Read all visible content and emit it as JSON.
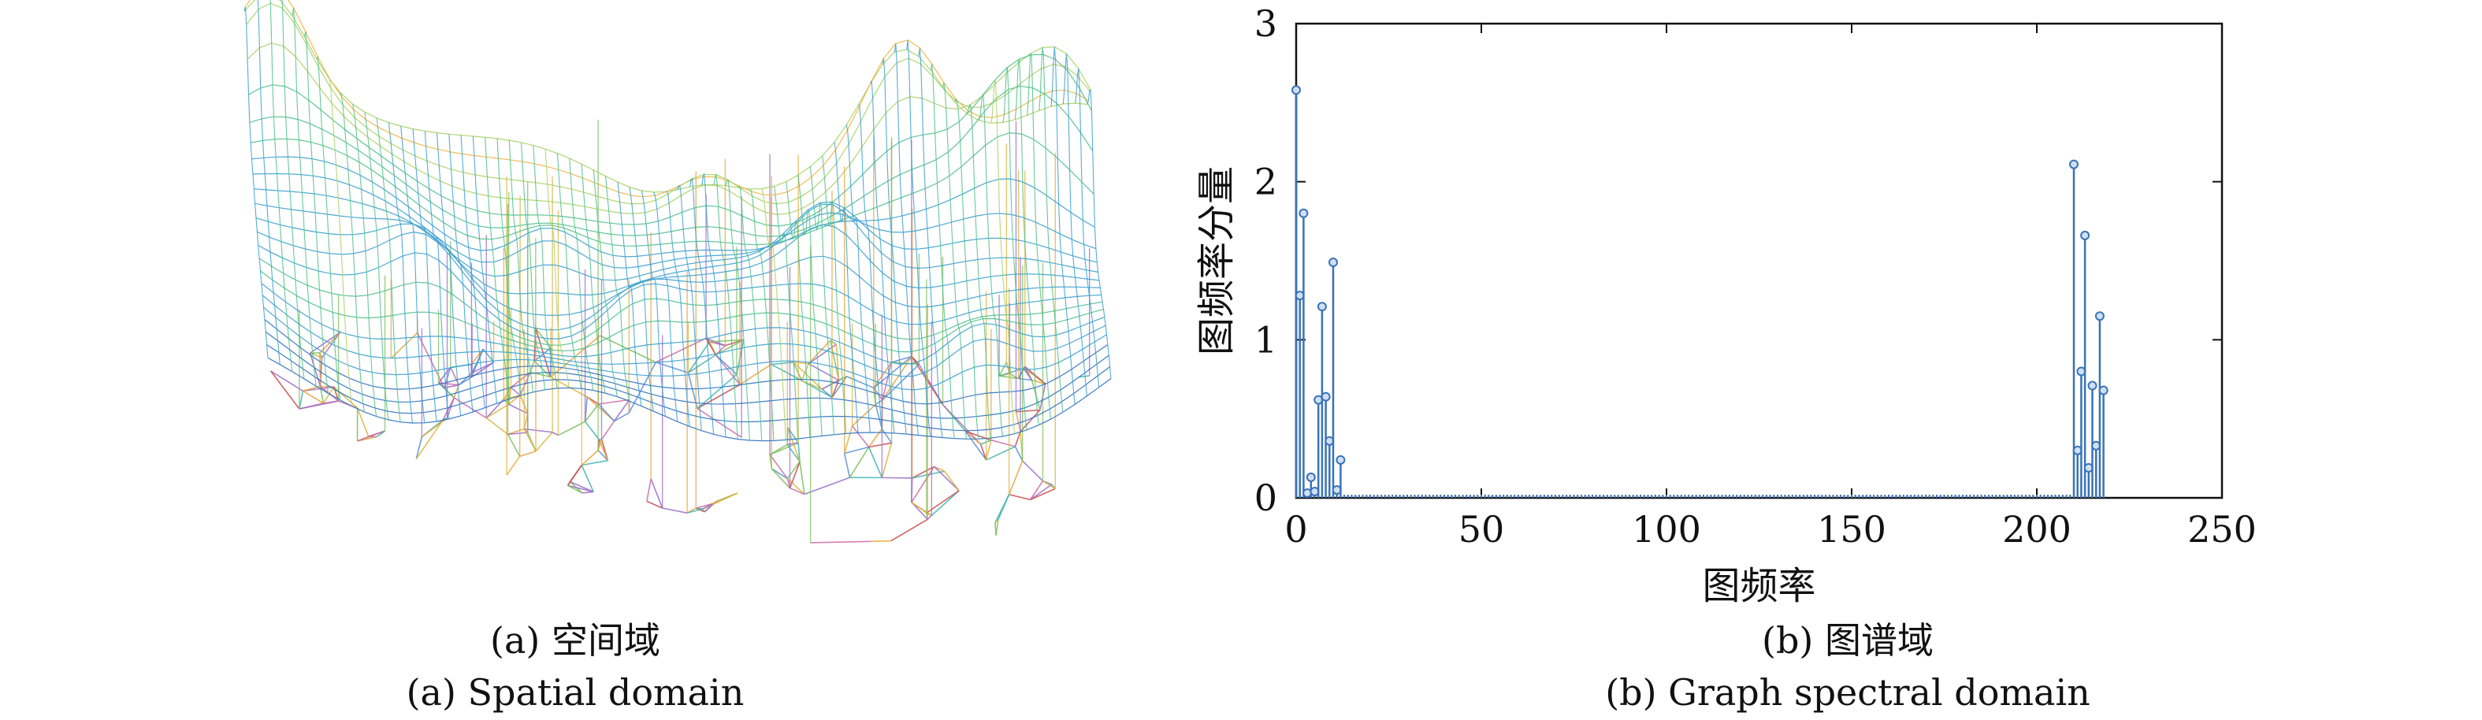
{
  "figure": {
    "panel_a": {
      "caption_cn": "(a) 空间域",
      "caption_en": "(a) Spatial domain",
      "graph_colors": [
        "#e8a33a",
        "#5b8fd6",
        "#7cbf5e",
        "#c74a4a",
        "#9a6cc9",
        "#3fb3b0",
        "#d9b43f",
        "#cc6ba8"
      ],
      "surface_colors": [
        "#f0b542",
        "#a7d164",
        "#4fbf8a",
        "#3a9fcf",
        "#2b6fbf"
      ]
    },
    "panel_b": {
      "caption_cn": "(b) 图谱域",
      "caption_en": "(b) Graph spectral domain"
    }
  },
  "chart_data": {
    "type": "stem",
    "title": "",
    "xlabel": "图频率",
    "ylabel": "图频率分量",
    "xlim": [
      0,
      250
    ],
    "ylim": [
      0,
      3
    ],
    "xticks": [
      0,
      50,
      100,
      150,
      200,
      250
    ],
    "yticks": [
      0,
      1,
      2,
      3
    ],
    "grid": false,
    "color": "#3a72b8",
    "x": [
      0,
      1,
      2,
      3,
      4,
      5,
      6,
      7,
      8,
      9,
      10,
      11,
      12,
      210,
      211,
      212,
      213,
      214,
      215,
      216,
      217,
      218
    ],
    "values": [
      2.58,
      1.28,
      1.8,
      0.03,
      0.13,
      0.04,
      0.62,
      1.21,
      0.64,
      0.36,
      1.49,
      0.05,
      0.24,
      2.11,
      0.3,
      0.8,
      1.66,
      0.19,
      0.71,
      0.33,
      1.15,
      0.68
    ],
    "baseline_fill": 0.02,
    "n_points": 219
  }
}
